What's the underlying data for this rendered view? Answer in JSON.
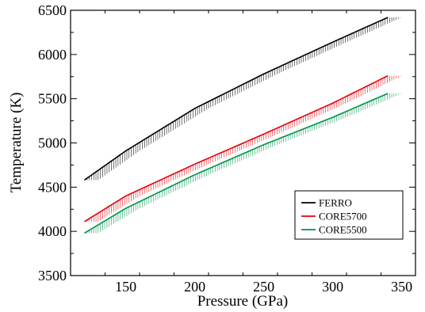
{
  "chart_data": {
    "type": "line",
    "xlabel": "Pressure (GPa)",
    "ylabel": "Temperature (K)",
    "xlim": [
      110,
      360
    ],
    "ylim": [
      3500,
      6500
    ],
    "x_ticks": [
      150,
      200,
      250,
      300,
      350
    ],
    "y_ticks": [
      3500,
      4000,
      4500,
      5000,
      5500,
      6000,
      6500
    ],
    "grid": false,
    "legend_position": "lower-right",
    "series": [
      {
        "name": "FERRO",
        "color": "#000000",
        "x": [
          120,
          150,
          200,
          250,
          300,
          340
        ],
        "y": [
          4580,
          4910,
          5390,
          5780,
          6140,
          6420
        ],
        "band_start": 120,
        "band_end": 350,
        "band_shift": 10
      },
      {
        "name": "CORE5700",
        "color": "#e8000b",
        "x": [
          120,
          150,
          200,
          250,
          300,
          340
        ],
        "y": [
          4110,
          4400,
          4760,
          5100,
          5450,
          5760
        ],
        "band_start": 120,
        "band_end": 350,
        "band_shift": 10
      },
      {
        "name": "CORE5500",
        "color": "#00924a",
        "x": [
          120,
          150,
          200,
          250,
          300,
          340
        ],
        "y": [
          3980,
          4260,
          4640,
          4980,
          5290,
          5560
        ],
        "band_start": 120,
        "band_end": 350,
        "band_shift": 10
      }
    ]
  }
}
